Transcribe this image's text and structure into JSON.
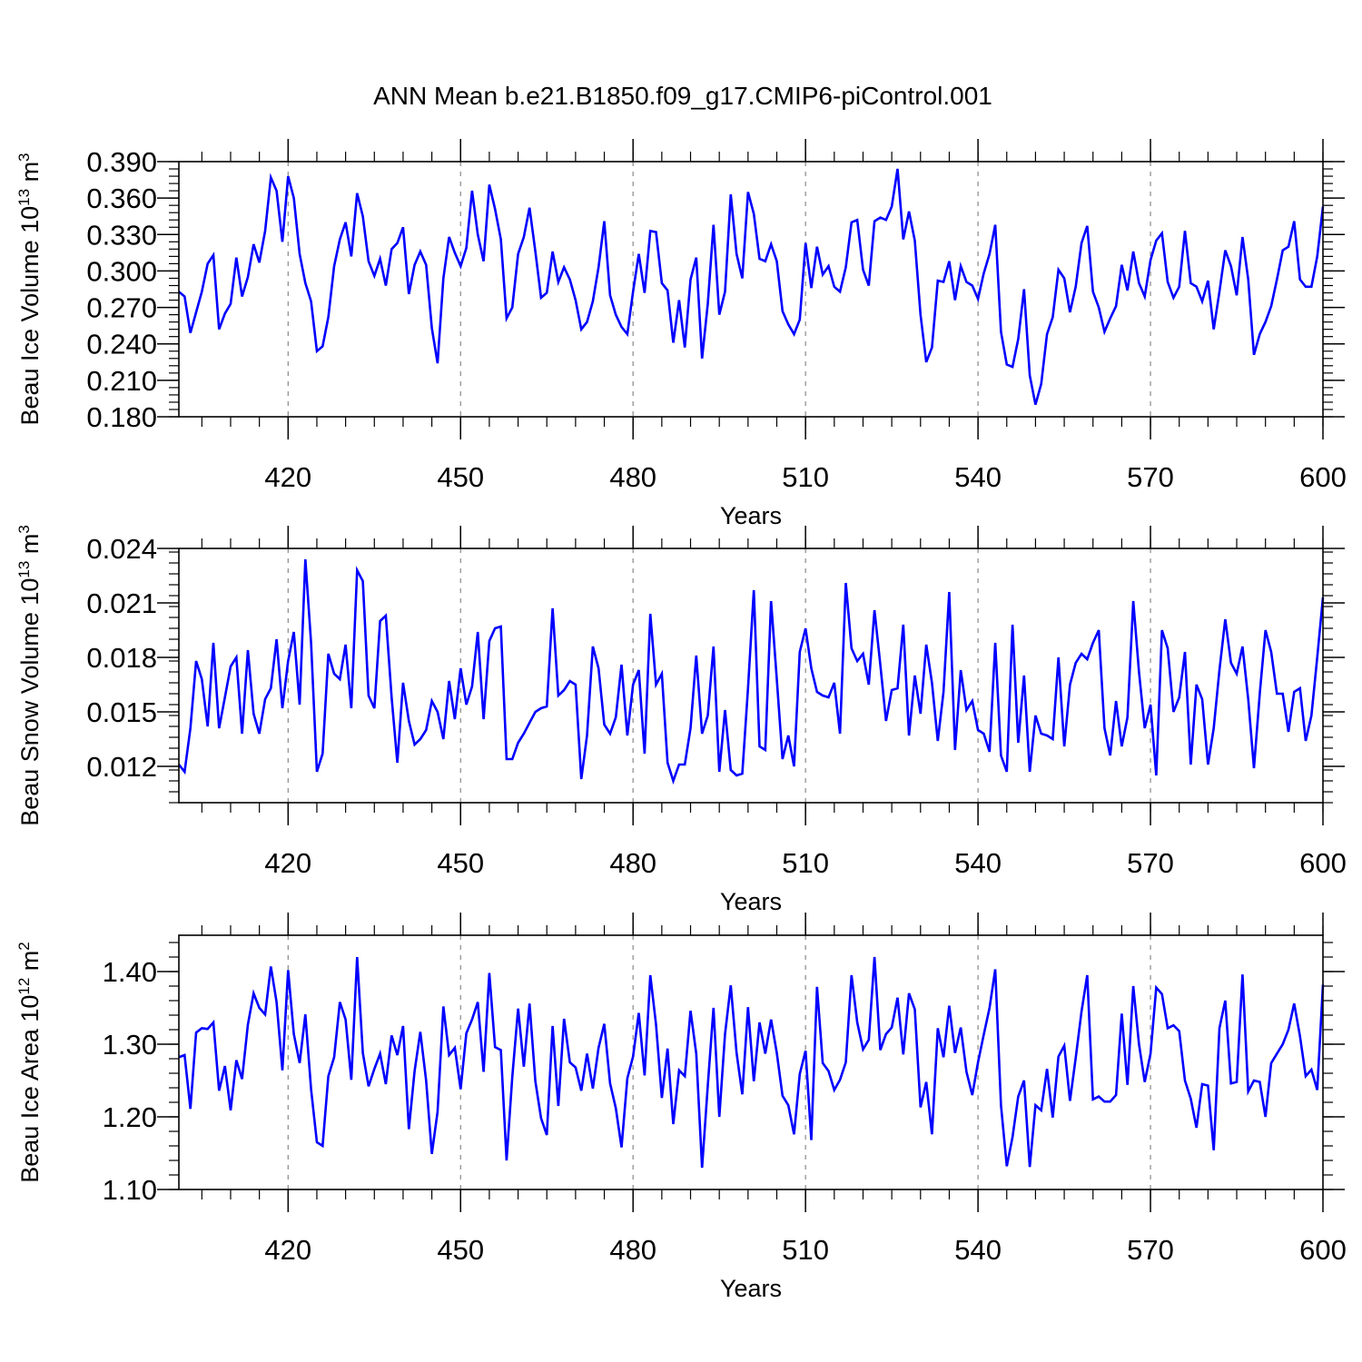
{
  "title": "ANN Mean b.e21.B1850.f09_g17.CMIP6-piControl.001",
  "line_color": "#0000ff",
  "chart_data": [
    {
      "type": "line",
      "ylabel": "Beau Ice Volume",
      "ylabel_scale": "10",
      "ylabel_exp": "13",
      "ylabel_unit": " m",
      "ylabel_unit_exp": "3",
      "xlabel": "Years",
      "xlim": [
        401,
        600
      ],
      "ylim": [
        0.18,
        0.39
      ],
      "xticks": [
        420,
        450,
        480,
        510,
        540,
        570,
        600
      ],
      "xtick_labels": [
        "420",
        "450",
        "480",
        "510",
        "540",
        "570",
        "600"
      ],
      "yticks": [
        0.18,
        0.21,
        0.24,
        0.27,
        0.3,
        0.33,
        0.36,
        0.39
      ],
      "ytick_labels": [
        "0.180",
        "0.210",
        "0.240",
        "0.270",
        "0.300",
        "0.330",
        "0.360",
        "0.390"
      ],
      "grid_x": [
        420,
        450,
        480,
        510,
        540,
        570
      ],
      "x_start": 401,
      "values": [
        0.283,
        0.279,
        0.249,
        0.266,
        0.283,
        0.306,
        0.313,
        0.252,
        0.265,
        0.273,
        0.311,
        0.279,
        0.295,
        0.322,
        0.307,
        0.333,
        0.377,
        0.366,
        0.324,
        0.378,
        0.36,
        0.314,
        0.29,
        0.275,
        0.234,
        0.238,
        0.262,
        0.304,
        0.326,
        0.34,
        0.312,
        0.364,
        0.345,
        0.308,
        0.296,
        0.31,
        0.288,
        0.318,
        0.323,
        0.336,
        0.281,
        0.305,
        0.316,
        0.305,
        0.253,
        0.224,
        0.294,
        0.328,
        0.315,
        0.304,
        0.319,
        0.366,
        0.33,
        0.308,
        0.371,
        0.351,
        0.326,
        0.261,
        0.27,
        0.314,
        0.328,
        0.352,
        0.316,
        0.278,
        0.282,
        0.316,
        0.291,
        0.303,
        0.293,
        0.276,
        0.252,
        0.258,
        0.275,
        0.303,
        0.341,
        0.28,
        0.264,
        0.254,
        0.248,
        0.283,
        0.314,
        0.282,
        0.333,
        0.332,
        0.29,
        0.284,
        0.241,
        0.276,
        0.237,
        0.293,
        0.311,
        0.228,
        0.273,
        0.338,
        0.264,
        0.283,
        0.363,
        0.314,
        0.294,
        0.365,
        0.347,
        0.31,
        0.308,
        0.322,
        0.308,
        0.267,
        0.256,
        0.248,
        0.26,
        0.323,
        0.286,
        0.32,
        0.297,
        0.304,
        0.287,
        0.283,
        0.303,
        0.34,
        0.342,
        0.301,
        0.288,
        0.341,
        0.344,
        0.342,
        0.353,
        0.384,
        0.326,
        0.349,
        0.325,
        0.264,
        0.225,
        0.237,
        0.292,
        0.291,
        0.308,
        0.276,
        0.304,
        0.291,
        0.288,
        0.277,
        0.298,
        0.314,
        0.338,
        0.25,
        0.223,
        0.221,
        0.244,
        0.285,
        0.214,
        0.19,
        0.207,
        0.248,
        0.262,
        0.301,
        0.294,
        0.266,
        0.287,
        0.323,
        0.337,
        0.283,
        0.27,
        0.25,
        0.261,
        0.271,
        0.305,
        0.284,
        0.316,
        0.29,
        0.279,
        0.309,
        0.325,
        0.331,
        0.291,
        0.278,
        0.287,
        0.333,
        0.29,
        0.287,
        0.275,
        0.292,
        0.252,
        0.283,
        0.317,
        0.304,
        0.28,
        0.328,
        0.293,
        0.231,
        0.248,
        0.258,
        0.271,
        0.293,
        0.317,
        0.32,
        0.341,
        0.293,
        0.287,
        0.287,
        0.312,
        0.353
      ]
    },
    {
      "type": "line",
      "ylabel": "Beau Snow Volume",
      "ylabel_scale": "10",
      "ylabel_exp": "13",
      "ylabel_unit": " m",
      "ylabel_unit_exp": "3",
      "xlabel": "Years",
      "xlim": [
        401,
        600
      ],
      "ylim": [
        0.01,
        0.024
      ],
      "xticks": [
        420,
        450,
        480,
        510,
        540,
        570,
        600
      ],
      "xtick_labels": [
        "420",
        "450",
        "480",
        "510",
        "540",
        "570",
        "600"
      ],
      "yticks": [
        0.012,
        0.015,
        0.018,
        0.021,
        0.024
      ],
      "ytick_labels": [
        "0.012",
        "0.015",
        "0.018",
        "0.021",
        "0.024"
      ],
      "grid_x": [
        420,
        450,
        480,
        510,
        540,
        570
      ],
      "x_start": 401,
      "values": [
        0.0121,
        0.0117,
        0.0141,
        0.0178,
        0.0168,
        0.0142,
        0.0188,
        0.0141,
        0.0158,
        0.0175,
        0.018,
        0.0138,
        0.0184,
        0.0149,
        0.0138,
        0.0157,
        0.0163,
        0.019,
        0.0152,
        0.0178,
        0.0194,
        0.0154,
        0.0234,
        0.0188,
        0.0117,
        0.0127,
        0.0182,
        0.0171,
        0.0168,
        0.0187,
        0.0152,
        0.0228,
        0.0222,
        0.0159,
        0.0152,
        0.02,
        0.0203,
        0.0158,
        0.0122,
        0.0166,
        0.0145,
        0.0132,
        0.0135,
        0.014,
        0.0156,
        0.015,
        0.0135,
        0.0167,
        0.0146,
        0.0174,
        0.0154,
        0.0164,
        0.0194,
        0.0146,
        0.0189,
        0.0196,
        0.0197,
        0.0124,
        0.0124,
        0.0133,
        0.0138,
        0.0144,
        0.015,
        0.0152,
        0.0153,
        0.0207,
        0.0159,
        0.0162,
        0.0167,
        0.0165,
        0.0113,
        0.0137,
        0.0186,
        0.0174,
        0.0143,
        0.0138,
        0.0147,
        0.0176,
        0.0137,
        0.0165,
        0.0173,
        0.0127,
        0.0204,
        0.0165,
        0.0171,
        0.0122,
        0.0112,
        0.0121,
        0.0121,
        0.0141,
        0.0181,
        0.0138,
        0.0148,
        0.0186,
        0.0117,
        0.0151,
        0.0118,
        0.0115,
        0.0116,
        0.0163,
        0.0217,
        0.0131,
        0.0129,
        0.0211,
        0.0168,
        0.0124,
        0.0137,
        0.012,
        0.0183,
        0.0196,
        0.0174,
        0.0161,
        0.0159,
        0.0158,
        0.0166,
        0.0138,
        0.0221,
        0.0185,
        0.0178,
        0.0182,
        0.0165,
        0.0206,
        0.0176,
        0.0145,
        0.0162,
        0.0163,
        0.0198,
        0.0137,
        0.017,
        0.0149,
        0.0187,
        0.0166,
        0.0134,
        0.0161,
        0.0216,
        0.0129,
        0.0173,
        0.0151,
        0.0156,
        0.014,
        0.0138,
        0.0128,
        0.0188,
        0.0126,
        0.0117,
        0.0198,
        0.0133,
        0.017,
        0.0117,
        0.0148,
        0.0138,
        0.0137,
        0.0135,
        0.018,
        0.0131,
        0.0165,
        0.0177,
        0.0182,
        0.0179,
        0.0188,
        0.0195,
        0.0141,
        0.0126,
        0.0156,
        0.0131,
        0.0147,
        0.0211,
        0.0172,
        0.0141,
        0.0154,
        0.0115,
        0.0195,
        0.0185,
        0.015,
        0.0158,
        0.0183,
        0.0121,
        0.0165,
        0.0157,
        0.0121,
        0.0141,
        0.0173,
        0.0201,
        0.0177,
        0.0171,
        0.0186,
        0.0157,
        0.0119,
        0.016,
        0.0195,
        0.0183,
        0.016,
        0.016,
        0.0139,
        0.0161,
        0.0163,
        0.0134,
        0.0148,
        0.018,
        0.0213
      ]
    },
    {
      "type": "line",
      "ylabel": "Beau Ice Area",
      "ylabel_scale": "10",
      "ylabel_exp": "12",
      "ylabel_unit": " m",
      "ylabel_unit_exp": "2",
      "xlabel": "Years",
      "xlim": [
        401,
        600
      ],
      "ylim": [
        1.1,
        1.45
      ],
      "xticks": [
        420,
        450,
        480,
        510,
        540,
        570,
        600
      ],
      "xtick_labels": [
        "420",
        "450",
        "480",
        "510",
        "540",
        "570",
        "600"
      ],
      "yticks": [
        1.1,
        1.2,
        1.3,
        1.4
      ],
      "ytick_labels": [
        "1.10",
        "1.20",
        "1.30",
        "1.40"
      ],
      "grid_x": [
        420,
        450,
        480,
        510,
        540,
        570
      ],
      "x_start": 401,
      "values": [
        1.282,
        1.285,
        1.211,
        1.316,
        1.322,
        1.321,
        1.33,
        1.236,
        1.27,
        1.209,
        1.278,
        1.252,
        1.327,
        1.37,
        1.35,
        1.341,
        1.407,
        1.358,
        1.264,
        1.402,
        1.314,
        1.274,
        1.341,
        1.238,
        1.165,
        1.16,
        1.256,
        1.282,
        1.358,
        1.334,
        1.251,
        1.42,
        1.288,
        1.242,
        1.266,
        1.287,
        1.245,
        1.312,
        1.285,
        1.325,
        1.183,
        1.263,
        1.317,
        1.25,
        1.149,
        1.207,
        1.352,
        1.285,
        1.295,
        1.238,
        1.315,
        1.334,
        1.358,
        1.262,
        1.398,
        1.296,
        1.292,
        1.14,
        1.255,
        1.349,
        1.269,
        1.356,
        1.249,
        1.198,
        1.175,
        1.325,
        1.215,
        1.335,
        1.275,
        1.268,
        1.236,
        1.287,
        1.239,
        1.295,
        1.328,
        1.246,
        1.212,
        1.158,
        1.253,
        1.283,
        1.343,
        1.257,
        1.395,
        1.327,
        1.226,
        1.294,
        1.19,
        1.264,
        1.256,
        1.346,
        1.287,
        1.13,
        1.243,
        1.35,
        1.2,
        1.314,
        1.381,
        1.288,
        1.231,
        1.351,
        1.249,
        1.33,
        1.287,
        1.334,
        1.288,
        1.229,
        1.216,
        1.176,
        1.259,
        1.291,
        1.168,
        1.379,
        1.274,
        1.263,
        1.237,
        1.251,
        1.275,
        1.395,
        1.33,
        1.293,
        1.306,
        1.42,
        1.292,
        1.314,
        1.323,
        1.364,
        1.286,
        1.37,
        1.348,
        1.213,
        1.248,
        1.176,
        1.322,
        1.282,
        1.353,
        1.288,
        1.323,
        1.262,
        1.23,
        1.275,
        1.313,
        1.35,
        1.403,
        1.216,
        1.132,
        1.172,
        1.228,
        1.25,
        1.131,
        1.216,
        1.209,
        1.266,
        1.199,
        1.283,
        1.298,
        1.222,
        1.281,
        1.345,
        1.395,
        1.224,
        1.228,
        1.221,
        1.221,
        1.23,
        1.342,
        1.244,
        1.38,
        1.3,
        1.248,
        1.287,
        1.378,
        1.369,
        1.322,
        1.326,
        1.318,
        1.25,
        1.225,
        1.185,
        1.245,
        1.243,
        1.154,
        1.322,
        1.36,
        1.246,
        1.248,
        1.396,
        1.235,
        1.25,
        1.248,
        1.2,
        1.274,
        1.287,
        1.3,
        1.32,
        1.356,
        1.311,
        1.256,
        1.265,
        1.237,
        1.382
      ]
    }
  ]
}
